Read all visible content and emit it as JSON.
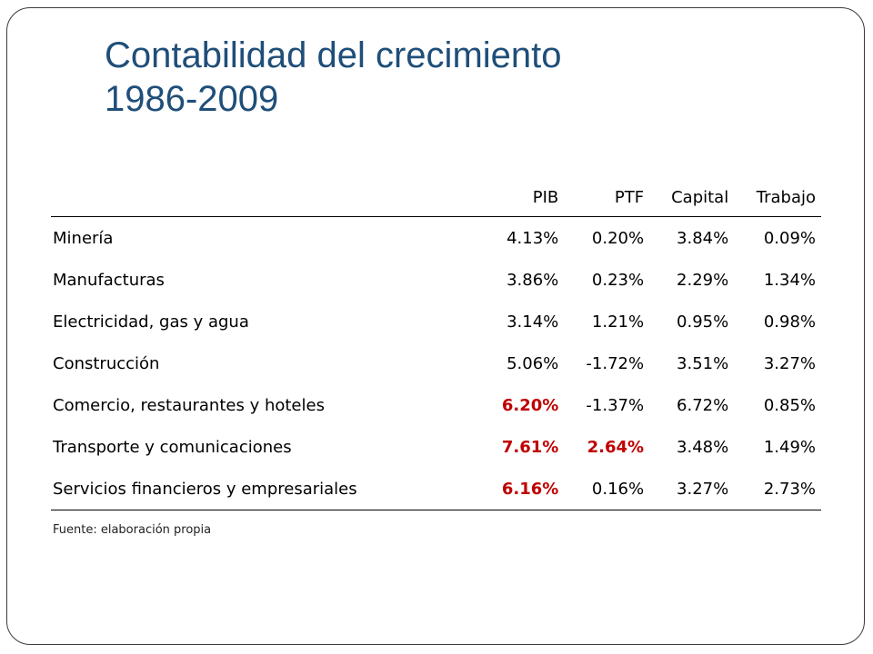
{
  "slide": {
    "title_line1": "Contabilidad del crecimiento",
    "title_line2": "1986-2009"
  },
  "table": {
    "headers": [
      "",
      "PIB",
      "PTF",
      "Capital",
      "Trabajo"
    ],
    "rows": [
      {
        "sector": "Minería",
        "pib": "4.13%",
        "ptf": "0.20%",
        "capital": "3.84%",
        "trabajo": "0.09%"
      },
      {
        "sector": "Manufacturas",
        "pib": "3.86%",
        "ptf": "0.23%",
        "capital": "2.29%",
        "trabajo": "1.34%"
      },
      {
        "sector": "Electricidad, gas y agua",
        "pib": "3.14%",
        "ptf": "1.21%",
        "capital": "0.95%",
        "trabajo": "0.98%"
      },
      {
        "sector": "Construcción",
        "pib": "5.06%",
        "ptf": "-1.72%",
        "capital": "3.51%",
        "trabajo": "3.27%"
      },
      {
        "sector": "Comercio, restaurantes y hoteles",
        "pib": "6.20%",
        "ptf": "-1.37%",
        "capital": "6.72%",
        "trabajo": "0.85%"
      },
      {
        "sector": "Transporte y comunicaciones",
        "pib": "7.61%",
        "ptf": "2.64%",
        "capital": "3.48%",
        "trabajo": "1.49%"
      },
      {
        "sector": "Servicios financieros y empresariales",
        "pib": "6.16%",
        "ptf": "0.16%",
        "capital": "3.27%",
        "trabajo": "2.73%"
      }
    ],
    "highlight_color": "#c00000"
  },
  "footer": {
    "source": "Fuente: elaboración propia"
  },
  "colors": {
    "title": "#1f4e79",
    "highlight": "#c00000"
  }
}
